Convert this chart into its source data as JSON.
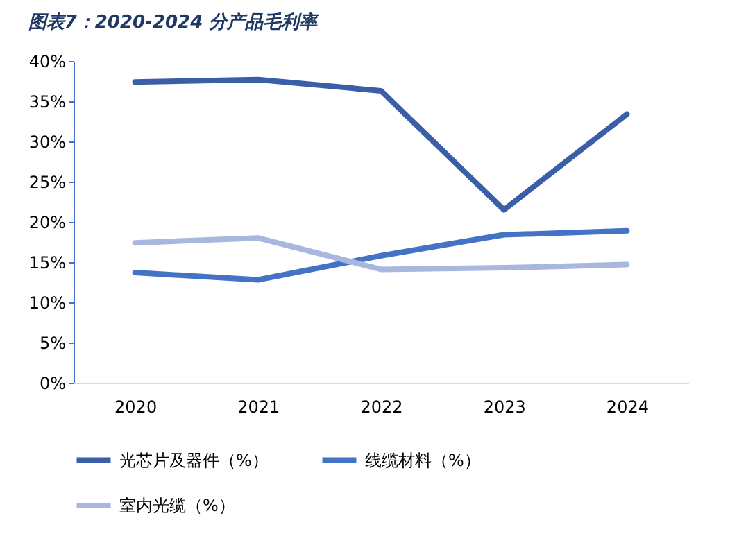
{
  "chart_data": {
    "type": "line",
    "title": "图表7：2020-2024 分产品毛利率",
    "categories": [
      "2020",
      "2021",
      "2022",
      "2023",
      "2024"
    ],
    "series": [
      {
        "name": "光芯片及器件（%）",
        "color": "#3a5fa8",
        "values": [
          37.4,
          37.7,
          36.3,
          21.5,
          33.4
        ]
      },
      {
        "name": "线缆材料（%）",
        "color": "#4472c4",
        "values": [
          13.7,
          12.8,
          15.8,
          18.4,
          18.9
        ]
      },
      {
        "name": "室内光缆（%）",
        "color": "#a9b6dd",
        "values": [
          17.4,
          18.0,
          14.1,
          14.3,
          14.7
        ]
      }
    ],
    "ylim": [
      0,
      40
    ],
    "yticks": [
      {
        "value": 0,
        "label": "0%"
      },
      {
        "value": 5,
        "label": "5%"
      },
      {
        "value": 10,
        "label": "10%"
      },
      {
        "value": 15,
        "label": "15%"
      },
      {
        "value": 20,
        "label": "20%"
      },
      {
        "value": 25,
        "label": "25%"
      },
      {
        "value": 30,
        "label": "30%"
      },
      {
        "value": 35,
        "label": "35%"
      },
      {
        "value": 40,
        "label": "40%"
      }
    ],
    "grid": false,
    "legend": "bottom",
    "marker": "none",
    "line_style": "solid"
  }
}
